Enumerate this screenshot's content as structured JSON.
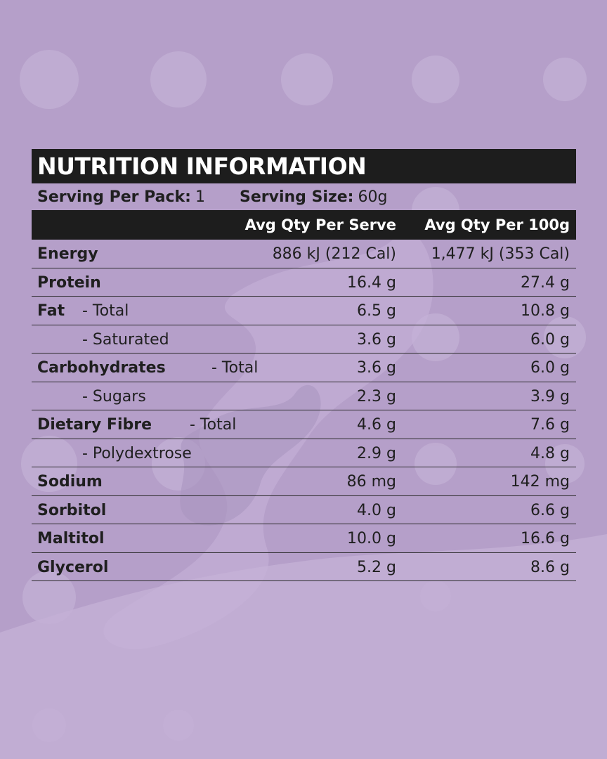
{
  "title": "NUTRITION INFORMATION",
  "serving": {
    "per_pack_label": "Serving Per Pack:",
    "per_pack_value": "1",
    "size_label": "Serving Size:",
    "size_value": "60g"
  },
  "columns": {
    "serve": "Avg Qty Per Serve",
    "per100": "Avg Qty Per 100g"
  },
  "rows": [
    {
      "name": "Energy",
      "sub": "",
      "serve": "886 kJ (212 Cal)",
      "per100": "1,477 kJ (353 Cal)"
    },
    {
      "name": "Protein",
      "sub": "",
      "serve": "16.4 g",
      "per100": "27.4 g"
    },
    {
      "name": "Fat",
      "sub": "- Total",
      "serve": "6.5 g",
      "per100": "10.8 g"
    },
    {
      "name": "",
      "sub": "- Saturated",
      "serve": "3.6 g",
      "per100": "6.0 g"
    },
    {
      "name": "Carbohydrates",
      "sub": "- Total",
      "serve": "3.6 g",
      "per100": "6.0 g"
    },
    {
      "name": "",
      "sub": "- Sugars",
      "serve": "2.3 g",
      "per100": "3.9 g"
    },
    {
      "name": "Dietary Fibre",
      "sub": "- Total",
      "serve": "4.6 g",
      "per100": "7.6 g"
    },
    {
      "name": "",
      "sub": "- Polydextrose",
      "serve": "2.9 g",
      "per100": "4.8 g"
    },
    {
      "name": "Sodium",
      "sub": "",
      "serve": "86 mg",
      "per100": "142 mg"
    },
    {
      "name": "Sorbitol",
      "sub": "",
      "serve": "4.0 g",
      "per100": "6.6 g"
    },
    {
      "name": "Maltitol",
      "sub": "",
      "serve": "10.0 g",
      "per100": "16.6 g"
    },
    {
      "name": "Glycerol",
      "sub": "",
      "serve": "5.2 g",
      "per100": "8.6 g"
    }
  ],
  "colors": {
    "background": "#b59fc9",
    "bar": "#1d1d1d",
    "splash": "#c4b0d6"
  }
}
